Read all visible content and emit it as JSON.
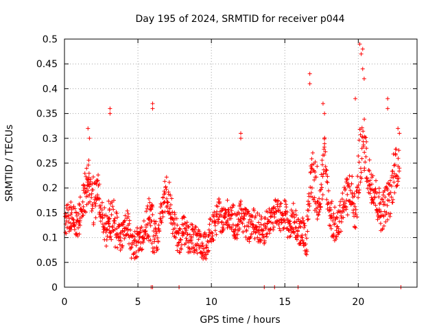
{
  "chart_data": {
    "type": "scatter",
    "title": "Day 195 of 2024, SRMTID for receiver p044",
    "xlabel": "GPS time / hours",
    "ylabel": "SRMTID / TECUs",
    "xlim": [
      0,
      24
    ],
    "ylim": [
      0,
      0.5
    ],
    "x_ticks": [
      0,
      5,
      10,
      15,
      20
    ],
    "x_tick_labels": [
      "0",
      "5",
      "10",
      "15",
      "20"
    ],
    "y_ticks": [
      0,
      0.05,
      0.1,
      0.15,
      0.2,
      0.25,
      0.3,
      0.35,
      0.4,
      0.45,
      0.5
    ],
    "y_tick_labels": [
      "0",
      "0.05",
      "0.1",
      "0.15",
      "0.2",
      "0.25",
      "0.3",
      "0.35",
      "0.4",
      "0.45",
      "0.5"
    ],
    "grid": true,
    "marker": "plus",
    "color": "#ff0000",
    "series": [
      {
        "name": "SRMTID p044",
        "x": [
          0.0,
          0.3,
          0.6,
          0.9,
          1.2,
          1.5,
          1.7,
          2.0,
          2.3,
          2.6,
          2.9,
          3.1,
          3.4,
          3.7,
          4.0,
          4.3,
          4.6,
          4.9,
          5.2,
          5.5,
          5.8,
          6.0,
          6.3,
          6.6,
          6.9,
          7.2,
          7.5,
          7.8,
          8.1,
          8.4,
          8.7,
          9.0,
          9.3,
          9.6,
          9.9,
          10.2,
          10.5,
          10.8,
          11.1,
          11.4,
          11.7,
          12.0,
          12.3,
          12.6,
          12.9,
          13.2,
          13.5,
          13.8,
          14.1,
          14.4,
          14.7,
          15.0,
          15.3,
          15.6,
          15.9,
          16.2,
          16.5,
          16.8,
          17.1,
          17.4,
          17.7,
          18.0,
          18.3,
          18.6,
          18.9,
          19.2,
          19.5,
          19.8,
          20.1,
          20.4,
          20.7,
          21.0,
          21.3,
          21.6,
          21.9,
          22.2,
          22.5,
          22.8
        ],
        "y": [
          0.13,
          0.14,
          0.15,
          0.12,
          0.17,
          0.2,
          0.22,
          0.17,
          0.19,
          0.14,
          0.11,
          0.15,
          0.13,
          0.1,
          0.11,
          0.13,
          0.08,
          0.09,
          0.1,
          0.12,
          0.14,
          0.12,
          0.09,
          0.15,
          0.19,
          0.17,
          0.12,
          0.09,
          0.12,
          0.1,
          0.1,
          0.09,
          0.08,
          0.08,
          0.11,
          0.12,
          0.15,
          0.13,
          0.15,
          0.14,
          0.12,
          0.15,
          0.13,
          0.12,
          0.13,
          0.12,
          0.11,
          0.13,
          0.14,
          0.15,
          0.14,
          0.15,
          0.12,
          0.14,
          0.11,
          0.12,
          0.09,
          0.24,
          0.2,
          0.18,
          0.26,
          0.16,
          0.13,
          0.12,
          0.16,
          0.18,
          0.2,
          0.14,
          0.26,
          0.29,
          0.22,
          0.21,
          0.17,
          0.15,
          0.17,
          0.18,
          0.25,
          0.24
        ],
        "spread": [
          0.03,
          0.03,
          0.03,
          0.03,
          0.03,
          0.05,
          0.04,
          0.05,
          0.04,
          0.03,
          0.04,
          0.05,
          0.05,
          0.03,
          0.03,
          0.03,
          0.03,
          0.03,
          0.03,
          0.03,
          0.05,
          0.05,
          0.03,
          0.03,
          0.04,
          0.04,
          0.03,
          0.03,
          0.03,
          0.03,
          0.03,
          0.03,
          0.03,
          0.03,
          0.03,
          0.03,
          0.03,
          0.03,
          0.03,
          0.03,
          0.03,
          0.03,
          0.03,
          0.03,
          0.03,
          0.03,
          0.03,
          0.03,
          0.03,
          0.03,
          0.03,
          0.03,
          0.03,
          0.03,
          0.03,
          0.03,
          0.03,
          0.05,
          0.06,
          0.05,
          0.05,
          0.04,
          0.04,
          0.03,
          0.04,
          0.04,
          0.04,
          0.04,
          0.06,
          0.05,
          0.05,
          0.04,
          0.04,
          0.04,
          0.04,
          0.04,
          0.05,
          0.04
        ]
      }
    ],
    "peaks": {
      "x": [
        1.6,
        1.7,
        3.1,
        3.1,
        6.0,
        6.0,
        12.0,
        12.0,
        16.7,
        16.7,
        17.6,
        17.7,
        19.8,
        20.1,
        20.2,
        20.3,
        20.3,
        20.4,
        22.0,
        22.0,
        22.7,
        22.8
      ],
      "y": [
        0.32,
        0.3,
        0.35,
        0.36,
        0.37,
        0.36,
        0.31,
        0.3,
        0.43,
        0.41,
        0.37,
        0.35,
        0.38,
        0.49,
        0.47,
        0.48,
        0.44,
        0.42,
        0.38,
        0.36,
        0.32,
        0.31
      ]
    },
    "zero_markers": {
      "x": [
        5.9,
        6.0,
        7.8,
        13.6,
        14.3,
        15.9,
        22.9
      ],
      "y": [
        0,
        0,
        0,
        0,
        0,
        0,
        0
      ]
    }
  }
}
